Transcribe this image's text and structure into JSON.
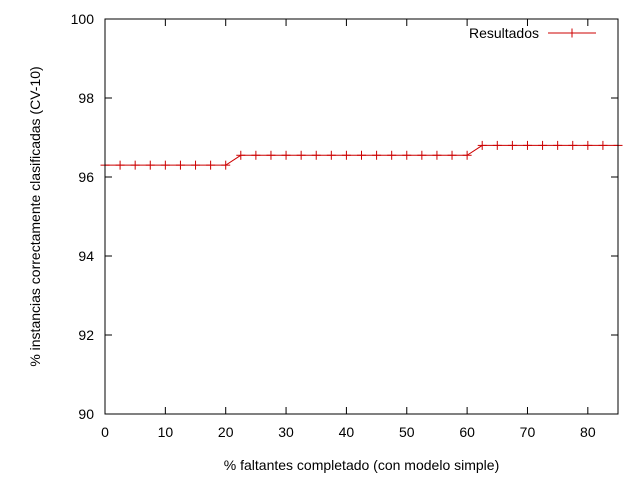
{
  "chart_data": {
    "type": "line",
    "title": "",
    "xlabel": "% faltantes completado (con modelo simple)",
    "ylabel": "% instancias correctamente clasificadas (CV-10)",
    "xlim": [
      0,
      85
    ],
    "ylim": [
      90,
      100
    ],
    "xticks": [
      0,
      10,
      20,
      30,
      40,
      50,
      60,
      70,
      80
    ],
    "yticks": [
      90,
      92,
      94,
      96,
      98,
      100
    ],
    "grid": false,
    "legend": "top-right",
    "series": [
      {
        "name": "Resultados",
        "color": "#cc0000",
        "marker": "plus",
        "x": [
          0,
          2.5,
          5,
          7.5,
          10,
          12.5,
          15,
          17.5,
          20,
          22.5,
          25,
          27.5,
          30,
          32.5,
          35,
          37.5,
          40,
          42.5,
          45,
          47.5,
          50,
          52.5,
          55,
          57.5,
          60,
          62.5,
          65,
          67.5,
          70,
          72.5,
          75,
          77.5,
          80,
          82.5,
          85
        ],
        "y": [
          96.3,
          96.3,
          96.3,
          96.3,
          96.3,
          96.3,
          96.3,
          96.3,
          96.3,
          96.55,
          96.55,
          96.55,
          96.55,
          96.55,
          96.55,
          96.55,
          96.55,
          96.55,
          96.55,
          96.55,
          96.55,
          96.55,
          96.55,
          96.55,
          96.55,
          96.8,
          96.8,
          96.8,
          96.8,
          96.8,
          96.8,
          96.8,
          96.8,
          96.8,
          96.8
        ]
      }
    ]
  }
}
